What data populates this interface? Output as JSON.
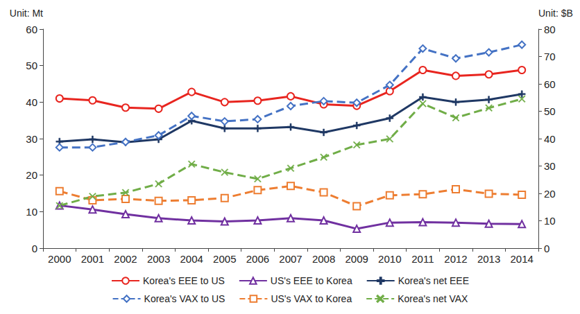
{
  "chart_data": {
    "type": "line",
    "ylabel": "Unit: Mt",
    "y2label": "Unit: $B",
    "categories": [
      "2000",
      "2001",
      "2002",
      "2003",
      "2004",
      "2005",
      "2006",
      "2007",
      "2008",
      "2009",
      "2010",
      "2011",
      "2012",
      "2013",
      "2014"
    ],
    "ylim": [
      0,
      60
    ],
    "yticks": [
      0,
      10,
      20,
      30,
      40,
      50,
      60
    ],
    "y2lim": [
      0,
      80
    ],
    "y2ticks": [
      0,
      10,
      20,
      30,
      40,
      50,
      60,
      70,
      80
    ],
    "grid": false,
    "legend": "bottom",
    "series": [
      {
        "name": "Korea's EEE to US",
        "color": "#e8251f",
        "marker": "circle",
        "line_style": "solid",
        "values": [
          41.0,
          40.5,
          38.5,
          38.2,
          42.8,
          40.0,
          40.4,
          41.6,
          39.4,
          39.0,
          43.0,
          48.8,
          47.2,
          47.6,
          48.8
        ]
      },
      {
        "name": "US's EEE to Korea",
        "color": "#7030a0",
        "marker": "triangle",
        "line_style": "solid",
        "values": [
          11.7,
          10.6,
          9.3,
          8.2,
          7.6,
          7.3,
          7.6,
          8.2,
          7.6,
          5.3,
          7.0,
          7.1,
          7.0,
          6.7,
          6.6
        ]
      },
      {
        "name": "Korea's net EEE",
        "color": "#1f3864",
        "marker": "plus",
        "line_style": "solid",
        "values": [
          29.2,
          29.8,
          29.0,
          29.8,
          34.9,
          32.8,
          32.8,
          33.2,
          31.7,
          33.6,
          35.6,
          41.4,
          40.0,
          40.7,
          42.2
        ]
      },
      {
        "name": "Korea's VAX to US",
        "color": "#4472c4",
        "marker": "diamond",
        "line_style": "dashed",
        "axis": "y2",
        "values": [
          36.8,
          36.8,
          38.8,
          41.2,
          48.3,
          46.3,
          47.1,
          51.9,
          53.7,
          53.1,
          59.6,
          72.9,
          69.3,
          71.5,
          74.3
        ]
      },
      {
        "name": "US's VAX to Korea",
        "color": "#ed7d31",
        "marker": "square",
        "line_style": "dashed",
        "axis": "y2",
        "values": [
          20.8,
          17.5,
          18.0,
          17.3,
          17.5,
          18.3,
          21.2,
          22.7,
          20.4,
          15.3,
          19.3,
          19.7,
          21.5,
          19.9,
          19.5
        ]
      },
      {
        "name": "Korea's net VAX",
        "color": "#70ad47",
        "marker": "x",
        "line_style": "dashed",
        "axis": "y2",
        "values": [
          15.5,
          18.9,
          20.3,
          23.5,
          30.7,
          27.7,
          25.3,
          29.2,
          33.2,
          37.7,
          39.9,
          52.8,
          47.6,
          51.2,
          54.5
        ]
      }
    ]
  }
}
